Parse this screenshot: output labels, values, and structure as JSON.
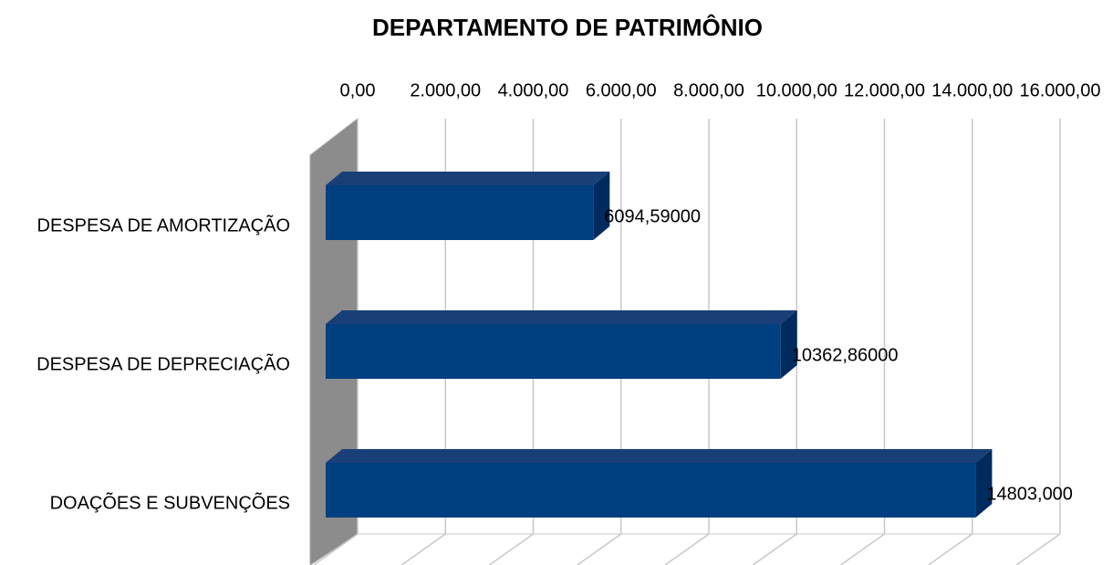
{
  "chart_data": {
    "type": "bar",
    "orientation": "horizontal",
    "title": "DEPARTAMENTO  DE PATRIMÔNIO",
    "categories": [
      "DESPESA DE AMORTIZAÇÃO",
      "DESPESA DE DEPRECIAÇÃO",
      "DOAÇÕES E SUBVENÇÕES"
    ],
    "values": [
      6094.59,
      10362.86,
      14803
    ],
    "value_labels": [
      "6094,59000",
      "10362,86000",
      "14803,000"
    ],
    "color": "#003f80",
    "xlim": [
      0,
      16000
    ],
    "xticks": [
      {
        "value": 0,
        "label": "0,00"
      },
      {
        "value": 2000,
        "label": "2.000,00"
      },
      {
        "value": 4000,
        "label": "4.000,00"
      },
      {
        "value": 6000,
        "label": "6.000,00"
      },
      {
        "value": 8000,
        "label": "8.000,00"
      },
      {
        "value": 10000,
        "label": "10.000,00"
      },
      {
        "value": 12000,
        "label": "12.000,00"
      },
      {
        "value": 14000,
        "label": "14.000,00"
      },
      {
        "value": 16000,
        "label": "16.000,00"
      }
    ],
    "grid": true
  }
}
